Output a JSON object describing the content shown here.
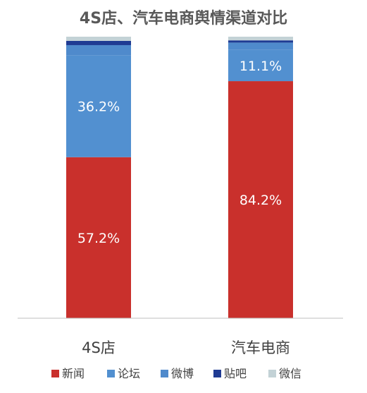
{
  "chart_data": {
    "type": "bar",
    "stacked": true,
    "title": "4S店、汽车电商舆情渠道对比",
    "categories": [
      "4S店",
      "汽车电商"
    ],
    "ylim": [
      0,
      100
    ],
    "grid": false,
    "legend_position": "bottom",
    "series": [
      {
        "name": "新闻",
        "color": "#C9302C",
        "values": [
          57.2,
          84.2
        ],
        "labels": [
          "57.2%",
          "84.2%"
        ]
      },
      {
        "name": "论坛",
        "color": "#5290D0",
        "values": [
          36.2,
          11.1
        ],
        "labels": [
          "36.2%",
          "11.1%"
        ]
      },
      {
        "name": "微博",
        "color": "#4F8ACC",
        "values": [
          3.6,
          2.6
        ],
        "labels": [
          "",
          ""
        ]
      },
      {
        "name": "贴吧",
        "color": "#1F3B93",
        "values": [
          1.5,
          0.8
        ],
        "labels": [
          "",
          ""
        ]
      },
      {
        "name": "微信",
        "color": "#C3D2D6",
        "values": [
          1.5,
          1.3
        ],
        "labels": [
          "",
          ""
        ]
      }
    ]
  }
}
